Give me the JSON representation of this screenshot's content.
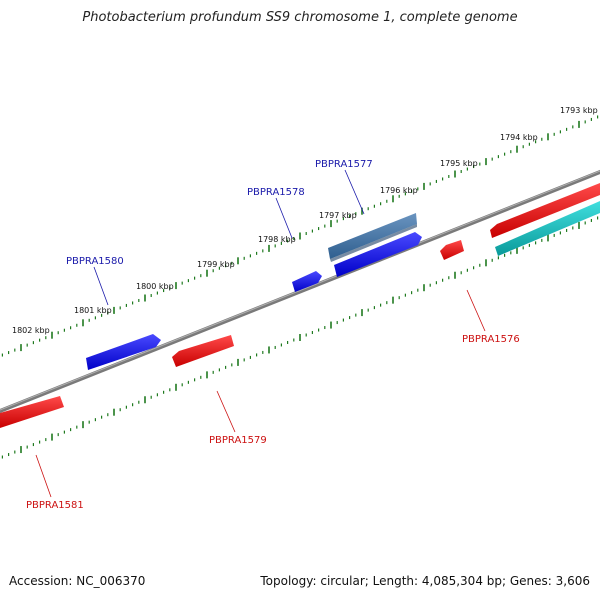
{
  "title": "Photobacterium profundum SS9 chromosome 1, complete genome",
  "footer": {
    "accession": "Accession: NC_006370",
    "summary": "Topology: circular; Length: 4,085,304 bp; Genes: 3,606"
  },
  "colors": {
    "backbone": "#808080",
    "ticks": "#1f7a1f",
    "forward_gene": "#0000ee",
    "reverse_gene": "#ee0000",
    "steelblue_gene": "#3f6f9f",
    "cyan_gene": "#10b8b8",
    "forward_label": "#1a1aaa",
    "reverse_label": "#cc1111"
  },
  "kbp_labels": [
    "1793 kbp",
    "1794 kbp",
    "1795 kbp",
    "1796 kbp",
    "1797 kbp",
    "1798 kbp",
    "1799 kbp",
    "1800 kbp",
    "1801 kbp",
    "1802 kbp"
  ],
  "gene_labels": [
    {
      "name": "PBPRA1577",
      "strand": "forward"
    },
    {
      "name": "PBPRA1578",
      "strand": "forward"
    },
    {
      "name": "PBPRA1580",
      "strand": "forward"
    },
    {
      "name": "PBPRA1576",
      "strand": "reverse"
    },
    {
      "name": "PBPRA1579",
      "strand": "reverse"
    },
    {
      "name": "PBPRA1581",
      "strand": "reverse"
    }
  ]
}
